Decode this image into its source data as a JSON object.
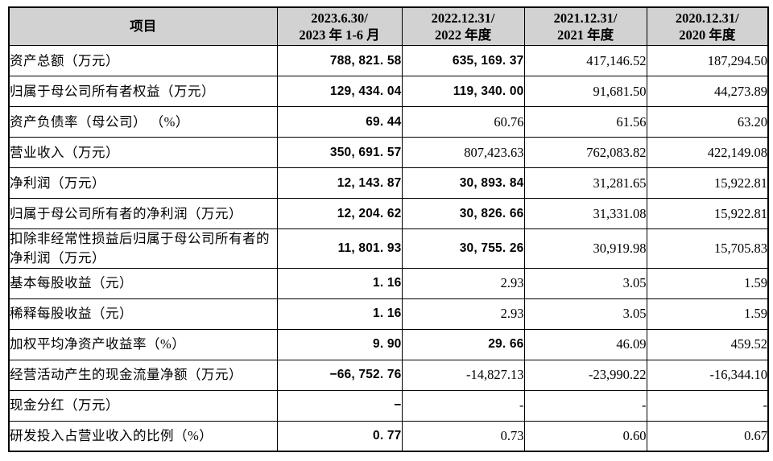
{
  "colors": {
    "header_bg": "#d2d2d2",
    "border": "#000000",
    "text": "#000000",
    "page_bg": "#ffffff"
  },
  "table": {
    "header": {
      "item_label": "项目",
      "columns": [
        {
          "line1": "2023.6.30/",
          "line2": "2023 年 1-6 月"
        },
        {
          "line1": "2022.12.31/",
          "line2": "2022 年度"
        },
        {
          "line1": "2021.12.31/",
          "line2": "2021 年度"
        },
        {
          "line1": "2020.12.31/",
          "line2": "2020 年度"
        }
      ]
    },
    "rows": [
      {
        "label": "资产总额（万元）",
        "values": [
          "788, 821. 58",
          "635, 169. 37",
          "417,146.52",
          "187,294.50"
        ],
        "bold": [
          true,
          true,
          false,
          false
        ]
      },
      {
        "label": "归属于母公司所有者权益（万元）",
        "values": [
          "129, 434. 04",
          "119, 340. 00",
          "91,681.50",
          "44,273.89"
        ],
        "bold": [
          true,
          true,
          false,
          false
        ]
      },
      {
        "label": "资产负债率（母公司） （%）",
        "values": [
          "69. 44",
          "60.76",
          "61.56",
          "63.20"
        ],
        "bold": [
          true,
          false,
          false,
          false
        ]
      },
      {
        "label": "营业收入（万元）",
        "values": [
          "350, 691. 57",
          "807,423.63",
          "762,083.82",
          "422,149.08"
        ],
        "bold": [
          true,
          false,
          false,
          false
        ]
      },
      {
        "label": "净利润（万元）",
        "values": [
          "12, 143. 87",
          "30, 893. 84",
          "31,281.65",
          "15,922.81"
        ],
        "bold": [
          true,
          true,
          false,
          false
        ]
      },
      {
        "label": "归属于母公司所有者的净利润（万元）",
        "values": [
          "12, 204. 62",
          "30, 826. 66",
          "31,331.08",
          "15,922.81"
        ],
        "bold": [
          true,
          true,
          false,
          false
        ]
      },
      {
        "label": "扣除非经常性损益后归属于母公司所有者的净利润（万元）",
        "values": [
          "11, 801. 93",
          "30, 755. 26",
          "30,919.98",
          "15,705.83"
        ],
        "bold": [
          true,
          true,
          false,
          false
        ]
      },
      {
        "label": "基本每股收益（元）",
        "values": [
          "1. 16",
          "2.93",
          "3.05",
          "1.59"
        ],
        "bold": [
          true,
          false,
          false,
          false
        ]
      },
      {
        "label": "稀释每股收益（元）",
        "values": [
          "1. 16",
          "2.93",
          "3.05",
          "1.59"
        ],
        "bold": [
          true,
          false,
          false,
          false
        ]
      },
      {
        "label": "加权平均净资产收益率（%）",
        "values": [
          "9. 90",
          "29. 66",
          "46.09",
          "459.52"
        ],
        "bold": [
          true,
          true,
          false,
          false
        ]
      },
      {
        "label": "经营活动产生的现金流量净额（万元）",
        "values": [
          "−66, 752. 76",
          "-14,827.13",
          "-23,990.22",
          "-16,344.10"
        ],
        "bold": [
          true,
          false,
          false,
          false
        ]
      },
      {
        "label": "现金分红（万元）",
        "values": [
          "−",
          "-",
          "-",
          "-"
        ],
        "bold": [
          true,
          false,
          false,
          false
        ]
      },
      {
        "label": "研发投入占营业收入的比例（%）",
        "values": [
          "0. 77",
          "0.73",
          "0.60",
          "0.67"
        ],
        "bold": [
          true,
          false,
          false,
          false
        ]
      }
    ]
  }
}
